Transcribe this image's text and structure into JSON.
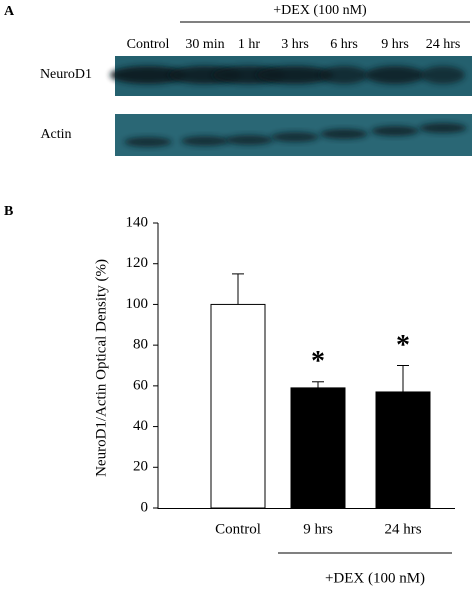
{
  "panel_a": {
    "label": "A",
    "treatment": "+DEX (100 nM)",
    "lanes": [
      "Control",
      "30 min",
      "1 hr",
      "3 hrs",
      "6 hrs",
      "9 hrs",
      "24 hrs"
    ],
    "rows": [
      "NeuroD1",
      "Actin"
    ]
  },
  "chart_data": {
    "type": "bar",
    "panel_label": "B",
    "ylabel": "NeuroD1/Actin Optical Density (%)",
    "categories": [
      "Control",
      "9 hrs",
      "24 hrs"
    ],
    "values": [
      100,
      59,
      57
    ],
    "errors": [
      15,
      3,
      13
    ],
    "colors": [
      "#ffffff",
      "#000000",
      "#000000"
    ],
    "significance": [
      null,
      "*",
      "*"
    ],
    "group_label": "+DEX (100 nM)",
    "ylim": [
      0,
      140
    ],
    "yticks": [
      0,
      20,
      40,
      60,
      80,
      100,
      120,
      140
    ]
  }
}
